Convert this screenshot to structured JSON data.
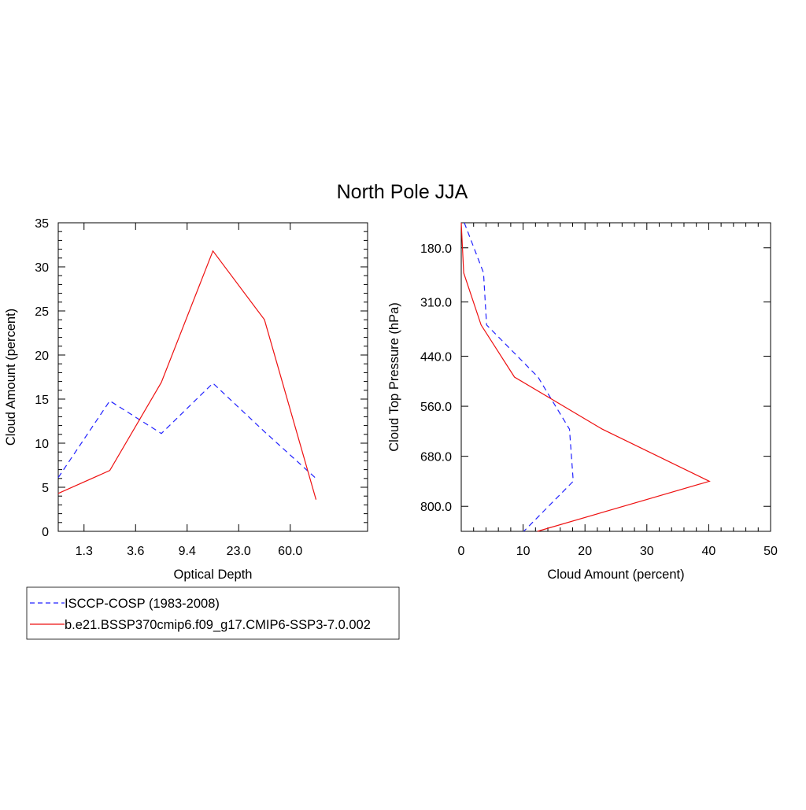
{
  "title": "North Pole JJA",
  "colors": {
    "obs": "#2222ff",
    "model": "#ee1111",
    "axis": "#000000"
  },
  "legend": {
    "placement": "bottom-left",
    "entries": [
      {
        "series": 0,
        "label": "ISCCP-COSP (1983-2008)",
        "style": "dashed"
      },
      {
        "series": 1,
        "label": "b.e21.BSSP370cmip6.f09_g17.CMIP6-SSP3-7.0.002",
        "style": "solid"
      }
    ]
  },
  "chart_data": [
    {
      "type": "line",
      "xlabel": "Optical Depth",
      "ylabel": "Cloud Amount (percent)",
      "xlim": [
        0,
        6
      ],
      "ylim": [
        0,
        35
      ],
      "grid": false,
      "x_ticks": [
        {
          "pos": 0.5,
          "label": "1.3"
        },
        {
          "pos": 1.5,
          "label": "3.6"
        },
        {
          "pos": 2.5,
          "label": "9.4"
        },
        {
          "pos": 3.5,
          "label": "23.0"
        },
        {
          "pos": 4.5,
          "label": "60.0"
        }
      ],
      "y_ticks": [
        0,
        5,
        10,
        15,
        20,
        25,
        30,
        35
      ],
      "series": [
        {
          "x": [
            0,
            1,
            2,
            3,
            4,
            5
          ],
          "values": [
            6.1,
            14.8,
            11.1,
            16.8,
            11.3,
            6.0
          ]
        },
        {
          "x": [
            0,
            1,
            2,
            3,
            4,
            5
          ],
          "values": [
            4.3,
            6.9,
            16.9,
            31.8,
            24.0,
            3.6
          ]
        }
      ]
    },
    {
      "type": "line",
      "xlabel": "Cloud Amount (percent)",
      "ylabel": "Cloud Top Pressure (hPa)",
      "xlim": [
        0,
        50
      ],
      "ylim": [
        120,
        860
      ],
      "y_reversed": true,
      "grid": false,
      "x_ticks": [
        0,
        10,
        20,
        30,
        40,
        50
      ],
      "y_ticks": [
        {
          "pos": 180,
          "label": "180.0"
        },
        {
          "pos": 310,
          "label": "310.0"
        },
        {
          "pos": 440,
          "label": "440.0"
        },
        {
          "pos": 560,
          "label": "560.0"
        },
        {
          "pos": 680,
          "label": "680.0"
        },
        {
          "pos": 800,
          "label": "800.0"
        }
      ],
      "series": [
        {
          "x": [
            0.5,
            3.6,
            4.1,
            12.4,
            17.5,
            18.1,
            10.1
          ],
          "y": [
            120,
            240,
            365,
            490,
            615,
            740,
            860
          ]
        },
        {
          "x": [
            0.0,
            0.4,
            3.2,
            8.6,
            22.8,
            40.1,
            12.3
          ],
          "y": [
            120,
            240,
            365,
            490,
            615,
            740,
            860
          ]
        }
      ]
    }
  ]
}
